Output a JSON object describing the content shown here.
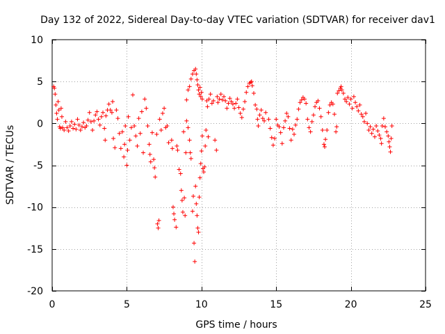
{
  "chart_data": {
    "type": "scatter",
    "title": "Day 132 of 2022, Sidereal Day-to-day VTEC variation (SDTVAR) for receiver dav1",
    "xlabel": "GPS time / hours",
    "ylabel": "SDTVAR / TECUs",
    "xlim": [
      0,
      25
    ],
    "ylim": [
      -20,
      10
    ],
    "x_ticks": [
      0,
      5,
      10,
      15,
      20,
      25
    ],
    "y_ticks": [
      -20,
      -15,
      -10,
      -5,
      0,
      5,
      10
    ],
    "x_tick_labels": [
      "0",
      "5",
      "10",
      "15",
      "20",
      "25"
    ],
    "y_tick_labels": [
      "-20",
      "-15",
      "-10",
      "-5",
      "0",
      "5",
      "10"
    ],
    "grid": true,
    "marker": "+",
    "color": "#ff0000",
    "series": [
      {
        "name": "SDTVAR",
        "points": [
          [
            0.1,
            4.4
          ],
          [
            0.15,
            4.2
          ],
          [
            0.2,
            3.5
          ],
          [
            0.25,
            2.2
          ],
          [
            0.3,
            1.2
          ],
          [
            0.35,
            0.5
          ],
          [
            0.4,
            2.6
          ],
          [
            0.45,
            1.6
          ],
          [
            0.5,
            -0.4
          ],
          [
            0.55,
            -0.6
          ],
          [
            0.6,
            1.8
          ],
          [
            0.65,
            0.8
          ],
          [
            0.7,
            -0.5
          ],
          [
            0.8,
            -0.8
          ],
          [
            0.9,
            0.2
          ],
          [
            1.0,
            -0.5
          ],
          [
            1.1,
            -0.9
          ],
          [
            1.2,
            -0.3
          ],
          [
            1.3,
            0.2
          ],
          [
            1.4,
            -0.6
          ],
          [
            1.5,
            -0.1
          ],
          [
            1.6,
            -0.7
          ],
          [
            1.7,
            0.5
          ],
          [
            1.8,
            -0.2
          ],
          [
            1.9,
            -0.8
          ],
          [
            2.0,
            -0.4
          ],
          [
            2.1,
            0.1
          ],
          [
            2.2,
            -0.5
          ],
          [
            2.3,
            -0.3
          ],
          [
            2.4,
            0.4
          ],
          [
            2.5,
            1.3
          ],
          [
            2.6,
            0.2
          ],
          [
            2.7,
            -0.8
          ],
          [
            2.8,
            0.3
          ],
          [
            2.9,
            1.0
          ],
          [
            3.0,
            1.4
          ],
          [
            3.1,
            0.5
          ],
          [
            3.2,
            -0.2
          ],
          [
            3.3,
            0.8
          ],
          [
            3.4,
            1.3
          ],
          [
            3.5,
            -0.6
          ],
          [
            3.55,
            -2.0
          ],
          [
            3.6,
            0.9
          ],
          [
            3.7,
            1.6
          ],
          [
            3.8,
            2.3
          ],
          [
            3.9,
            1.6
          ],
          [
            4.0,
            1.3
          ],
          [
            4.05,
            2.6
          ],
          [
            4.1,
            -1.8
          ],
          [
            4.2,
            -2.9
          ],
          [
            4.3,
            1.6
          ],
          [
            4.4,
            0.6
          ],
          [
            4.5,
            -1.2
          ],
          [
            4.6,
            -3.0
          ],
          [
            4.7,
            -1.0
          ],
          [
            4.8,
            -4.0
          ],
          [
            4.85,
            -2.5
          ],
          [
            4.9,
            -0.3
          ],
          [
            5.0,
            -5.0
          ],
          [
            5.05,
            -3.2
          ],
          [
            5.1,
            0.8
          ],
          [
            5.2,
            -2.0
          ],
          [
            5.3,
            -0.5
          ],
          [
            5.4,
            3.4
          ],
          [
            5.5,
            -0.3
          ],
          [
            5.6,
            -1.5
          ],
          [
            5.7,
            -2.7
          ],
          [
            5.8,
            0.6
          ],
          [
            5.9,
            -1.2
          ],
          [
            6.0,
            1.4
          ],
          [
            6.1,
            -3.5
          ],
          [
            6.2,
            2.9
          ],
          [
            6.3,
            1.8
          ],
          [
            6.4,
            -0.3
          ],
          [
            6.5,
            -2.5
          ],
          [
            6.55,
            -3.7
          ],
          [
            6.6,
            -4.6
          ],
          [
            6.7,
            -1.1
          ],
          [
            6.8,
            -4.3
          ],
          [
            6.85,
            -5.3
          ],
          [
            6.9,
            -6.4
          ],
          [
            7.0,
            -1.3
          ],
          [
            7.05,
            -12.0
          ],
          [
            7.1,
            -12.5
          ],
          [
            7.15,
            -11.6
          ],
          [
            7.2,
            0.5
          ],
          [
            7.3,
            -0.8
          ],
          [
            7.4,
            1.2
          ],
          [
            7.5,
            1.8
          ],
          [
            7.6,
            -0.5
          ],
          [
            7.7,
            -0.3
          ],
          [
            7.8,
            -2.3
          ],
          [
            8.0,
            -2.0
          ],
          [
            8.05,
            -3.0
          ],
          [
            8.1,
            -10.0
          ],
          [
            8.15,
            -10.8
          ],
          [
            8.2,
            -11.5
          ],
          [
            8.3,
            -12.4
          ],
          [
            8.35,
            -2.7
          ],
          [
            8.4,
            -3.2
          ],
          [
            8.5,
            -5.5
          ],
          [
            8.6,
            -6.0
          ],
          [
            8.65,
            -8.0
          ],
          [
            8.7,
            -9.2
          ],
          [
            8.75,
            -10.6
          ],
          [
            8.8,
            -1.0
          ],
          [
            8.85,
            -8.9
          ],
          [
            8.9,
            -11.0
          ],
          [
            8.95,
            -3.5
          ],
          [
            9.0,
            0.3
          ],
          [
            9.1,
            -0.5
          ],
          [
            9.2,
            -2.0
          ],
          [
            9.25,
            -3.5
          ],
          [
            9.3,
            -4.2
          ],
          [
            9.4,
            -10.5
          ],
          [
            9.45,
            -8.7
          ],
          [
            9.5,
            -14.3
          ],
          [
            9.55,
            -16.5
          ],
          [
            9.6,
            -7.5
          ],
          [
            9.65,
            -9.6
          ],
          [
            9.7,
            -11.0
          ],
          [
            9.75,
            -12.5
          ],
          [
            9.8,
            -13.0
          ],
          [
            9.85,
            -8.8
          ],
          [
            9.9,
            -6.5
          ],
          [
            9.95,
            -4.8
          ],
          [
            10.0,
            -3.3
          ],
          [
            10.05,
            -1.5
          ],
          [
            9.0,
            2.8
          ],
          [
            9.1,
            4.0
          ],
          [
            9.2,
            4.4
          ],
          [
            9.3,
            5.3
          ],
          [
            9.4,
            5.9
          ],
          [
            9.5,
            6.3
          ],
          [
            9.6,
            6.5
          ],
          [
            9.65,
            5.9
          ],
          [
            9.7,
            5.2
          ],
          [
            9.75,
            4.6
          ],
          [
            9.8,
            4.0
          ],
          [
            9.85,
            3.5
          ],
          [
            9.9,
            4.3
          ],
          [
            9.95,
            3.2
          ],
          [
            10.0,
            3.7
          ],
          [
            10.05,
            2.9
          ],
          [
            10.1,
            -5.4
          ],
          [
            10.15,
            -5.8
          ],
          [
            10.2,
            -5.2
          ],
          [
            10.25,
            -2.7
          ],
          [
            10.3,
            -0.8
          ],
          [
            10.35,
            2.7
          ],
          [
            10.4,
            2.0
          ],
          [
            10.45,
            -1.6
          ],
          [
            10.5,
            2.9
          ],
          [
            10.6,
            3.5
          ],
          [
            10.7,
            2.4
          ],
          [
            10.8,
            2.7
          ],
          [
            10.9,
            -2.0
          ],
          [
            11.0,
            -3.2
          ],
          [
            11.05,
            3.2
          ],
          [
            11.1,
            2.5
          ],
          [
            11.2,
            2.9
          ],
          [
            11.3,
            3.5
          ],
          [
            11.4,
            2.8
          ],
          [
            11.5,
            3.2
          ],
          [
            11.6,
            2.7
          ],
          [
            11.7,
            1.8
          ],
          [
            11.8,
            2.4
          ],
          [
            11.9,
            3.0
          ],
          [
            12.0,
            2.6
          ],
          [
            12.1,
            2.3
          ],
          [
            12.2,
            1.8
          ],
          [
            12.3,
            2.4
          ],
          [
            12.4,
            2.9
          ],
          [
            12.5,
            1.9
          ],
          [
            12.6,
            1.2
          ],
          [
            12.7,
            0.7
          ],
          [
            12.8,
            1.7
          ],
          [
            12.9,
            2.6
          ],
          [
            13.0,
            3.7
          ],
          [
            13.1,
            4.4
          ],
          [
            13.2,
            4.8
          ],
          [
            13.3,
            4.9
          ],
          [
            13.35,
            5.0
          ],
          [
            13.4,
            4.5
          ],
          [
            13.5,
            3.6
          ],
          [
            13.6,
            2.2
          ],
          [
            13.7,
            1.7
          ],
          [
            13.75,
            0.5
          ],
          [
            13.8,
            -0.3
          ],
          [
            13.9,
            1.0
          ],
          [
            14.0,
            1.6
          ],
          [
            14.1,
            0.6
          ],
          [
            14.2,
            0.3
          ],
          [
            14.3,
            1.3
          ],
          [
            14.5,
            0.5
          ],
          [
            14.6,
            -0.6
          ],
          [
            14.7,
            -1.7
          ],
          [
            14.8,
            -2.6
          ],
          [
            14.9,
            -1.8
          ],
          [
            15.0,
            0.5
          ],
          [
            15.1,
            -0.2
          ],
          [
            15.2,
            -0.4
          ],
          [
            15.3,
            -1.1
          ],
          [
            15.4,
            -2.4
          ],
          [
            15.5,
            -0.5
          ],
          [
            15.6,
            0.3
          ],
          [
            15.7,
            1.2
          ],
          [
            15.8,
            0.8
          ],
          [
            15.9,
            -0.6
          ],
          [
            16.0,
            -2.0
          ],
          [
            16.1,
            -0.7
          ],
          [
            16.2,
            -1.3
          ],
          [
            16.3,
            -0.2
          ],
          [
            16.4,
            0.5
          ],
          [
            16.5,
            1.7
          ],
          [
            16.6,
            2.5
          ],
          [
            16.7,
            2.8
          ],
          [
            16.8,
            3.1
          ],
          [
            16.9,
            2.9
          ],
          [
            17.0,
            2.4
          ],
          [
            17.1,
            0.5
          ],
          [
            17.2,
            -0.5
          ],
          [
            17.3,
            -1.0
          ],
          [
            17.4,
            0.2
          ],
          [
            17.5,
            1.0
          ],
          [
            17.6,
            2.0
          ],
          [
            17.7,
            2.5
          ],
          [
            17.8,
            2.7
          ],
          [
            17.9,
            1.8
          ],
          [
            18.0,
            0.8
          ],
          [
            18.1,
            -0.8
          ],
          [
            18.2,
            -2.5
          ],
          [
            18.25,
            -2.8
          ],
          [
            18.3,
            -1.9
          ],
          [
            18.4,
            -0.8
          ],
          [
            18.5,
            1.3
          ],
          [
            18.6,
            2.2
          ],
          [
            18.7,
            2.5
          ],
          [
            18.8,
            2.3
          ],
          [
            18.9,
            1.1
          ],
          [
            19.0,
            -1.0
          ],
          [
            19.05,
            -0.4
          ],
          [
            19.1,
            3.6
          ],
          [
            19.2,
            3.9
          ],
          [
            19.3,
            4.2
          ],
          [
            19.35,
            4.4
          ],
          [
            19.4,
            4.0
          ],
          [
            19.5,
            3.6
          ],
          [
            19.6,
            2.9
          ],
          [
            19.7,
            2.6
          ],
          [
            19.8,
            3.1
          ],
          [
            19.9,
            2.3
          ],
          [
            20.0,
            2.9
          ],
          [
            20.1,
            1.8
          ],
          [
            20.2,
            3.2
          ],
          [
            20.3,
            2.5
          ],
          [
            20.4,
            2.0
          ],
          [
            20.5,
            1.5
          ],
          [
            20.6,
            2.2
          ],
          [
            20.7,
            1.1
          ],
          [
            20.8,
            0.8
          ],
          [
            20.9,
            0.2
          ],
          [
            21.0,
            1.2
          ],
          [
            21.1,
            0.0
          ],
          [
            21.2,
            -0.8
          ],
          [
            21.3,
            -0.4
          ],
          [
            21.4,
            -1.2
          ],
          [
            21.5,
            -0.7
          ],
          [
            21.6,
            -1.6
          ],
          [
            21.7,
            -0.3
          ],
          [
            21.8,
            -0.9
          ],
          [
            21.9,
            -1.4
          ],
          [
            22.0,
            -1.8
          ],
          [
            22.05,
            -2.4
          ],
          [
            22.1,
            -0.3
          ],
          [
            22.2,
            0.6
          ],
          [
            22.3,
            -0.4
          ],
          [
            22.4,
            -1.0
          ],
          [
            22.5,
            -1.5
          ],
          [
            22.55,
            -2.2
          ],
          [
            22.6,
            -2.8
          ],
          [
            22.65,
            -3.4
          ],
          [
            22.7,
            -1.8
          ],
          [
            22.75,
            -0.3
          ]
        ]
      }
    ]
  }
}
